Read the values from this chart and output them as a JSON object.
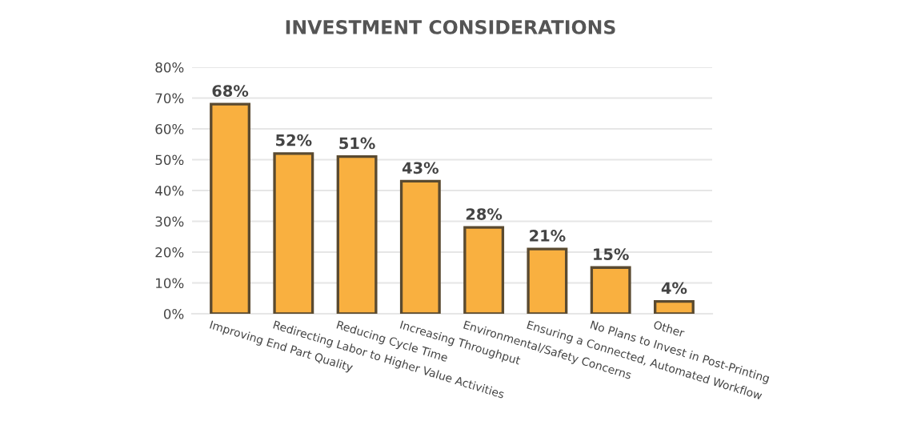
{
  "chart_data": {
    "type": "bar",
    "title": "INVESTMENT CONSIDERATIONS",
    "categories": [
      "Improving End Part Quality",
      "Redirecting Labor to Higher Value Activities",
      "Reducing Cycle Time",
      "Increasing Throughput",
      "Environmental/Safety Concerns",
      "Ensuring a Connected, Automated Workflow",
      "No Plans to Invest in Post-Printing",
      "Other"
    ],
    "values": [
      68,
      52,
      51,
      43,
      28,
      21,
      15,
      4
    ],
    "value_labels": [
      "68%",
      "52%",
      "51%",
      "43%",
      "28%",
      "21%",
      "15%",
      "4%"
    ],
    "color": "#f9b040",
    "ylim": [
      0,
      80
    ],
    "yticks": [
      {
        "value": 0,
        "label": "0%"
      },
      {
        "value": 10,
        "label": "10%"
      },
      {
        "value": 20,
        "label": "20%"
      },
      {
        "value": 30,
        "label": "30%"
      },
      {
        "value": 40,
        "label": "40%"
      },
      {
        "value": 50,
        "label": "50%"
      },
      {
        "value": 60,
        "label": "60%"
      },
      {
        "value": 70,
        "label": "70%"
      },
      {
        "value": 80,
        "label": "80%"
      }
    ],
    "grid": "y"
  }
}
